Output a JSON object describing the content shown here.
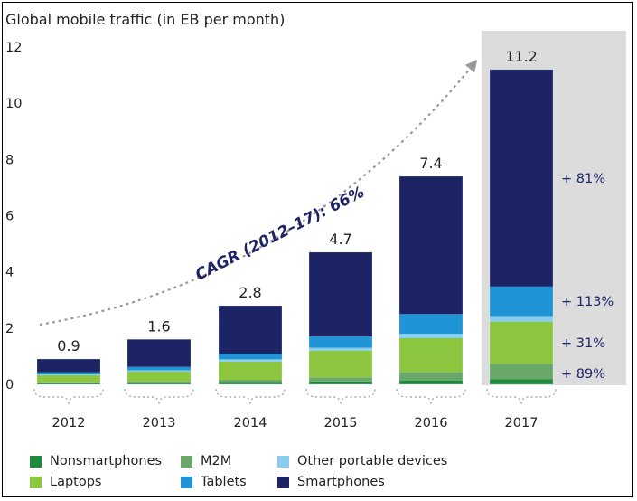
{
  "chart_data": {
    "type": "bar",
    "stacked": true,
    "title": "Global mobile traffic (in EB per month)",
    "categories": [
      "2012",
      "2013",
      "2014",
      "2015",
      "2016",
      "2017"
    ],
    "totals": [
      "0.9",
      "1.6",
      "2.8",
      "4.7",
      "7.4",
      "11.2"
    ],
    "ylim": [
      0,
      12
    ],
    "yticks": [
      "0",
      "2",
      "4",
      "6",
      "8",
      "10",
      "12"
    ],
    "series": [
      {
        "name": "Nonsmartphones",
        "color": "#1e8a3c",
        "values": [
          0.05,
          0.06,
          0.08,
          0.1,
          0.14,
          0.18
        ]
      },
      {
        "name": "M2M",
        "color": "#6aa86a",
        "values": [
          0.02,
          0.04,
          0.08,
          0.15,
          0.3,
          0.55
        ]
      },
      {
        "name": "Laptops",
        "color": "#8cc63f",
        "values": [
          0.25,
          0.35,
          0.65,
          0.95,
          1.2,
          1.5
        ]
      },
      {
        "name": "Other portable devices",
        "color": "#88cdee",
        "values": [
          0.03,
          0.05,
          0.08,
          0.1,
          0.16,
          0.2
        ]
      },
      {
        "name": "Tablets",
        "color": "#1f94d6",
        "values": [
          0.08,
          0.12,
          0.2,
          0.4,
          0.7,
          1.05
        ]
      },
      {
        "name": "Smartphones",
        "color": "#1c2466",
        "values": [
          0.47,
          0.98,
          1.71,
          3.0,
          4.9,
          7.72
        ]
      }
    ],
    "highlight_category": "2017",
    "growth_labels": [
      {
        "text": "+ 81%",
        "series": "Smartphones"
      },
      {
        "text": "+ 113%",
        "series": "Tablets"
      },
      {
        "text": "+ 31%",
        "series": "Laptops"
      },
      {
        "text": "+ 89%",
        "series": "M2M"
      }
    ],
    "annotation": "CAGR (2012–17): 66%",
    "legend_position": "bottom",
    "colors": {
      "axis_text": "#222222",
      "highlight_bg": "#dcdcdc",
      "arrow": "#999999",
      "annotation": "#1c2466"
    }
  },
  "legend": {
    "items": [
      {
        "label": "Nonsmartphones",
        "color": "#1e8a3c"
      },
      {
        "label": "M2M",
        "color": "#6aa86a"
      },
      {
        "label": "Other portable devices",
        "color": "#88cdee"
      },
      {
        "label": "Laptops",
        "color": "#8cc63f"
      },
      {
        "label": "Tablets",
        "color": "#1f94d6"
      },
      {
        "label": "Smartphones",
        "color": "#1c2466"
      }
    ]
  }
}
